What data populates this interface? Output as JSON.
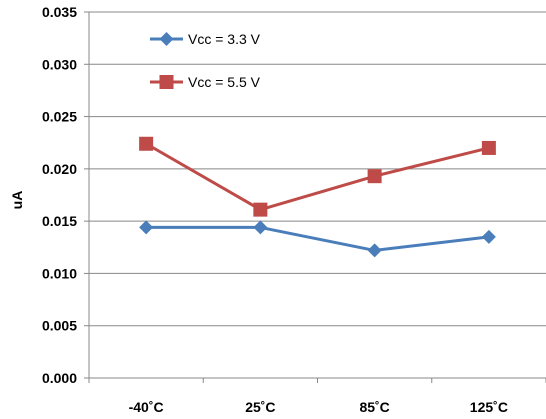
{
  "chart_data": {
    "type": "line",
    "categories": [
      "-40˚C",
      "25˚C",
      "85˚C",
      "125˚C"
    ],
    "series": [
      {
        "name": "Vcc = 3.3 V",
        "values": [
          0.0144,
          0.0144,
          0.0122,
          0.0135
        ],
        "color": "#4a7ebb",
        "marker": "diamond"
      },
      {
        "name": "Vcc = 5.5 V",
        "values": [
          0.0224,
          0.0161,
          0.0193,
          0.022
        ],
        "color": "#be4b48",
        "marker": "square"
      }
    ],
    "ylabel": "uA",
    "xlabel": "",
    "title": "",
    "ylim": [
      0,
      0.035
    ],
    "yticks": [
      "0.000",
      "0.005",
      "0.010",
      "0.015",
      "0.020",
      "0.025",
      "0.030",
      "0.035"
    ],
    "grid": "horizontal",
    "legend_position": "top-left"
  }
}
